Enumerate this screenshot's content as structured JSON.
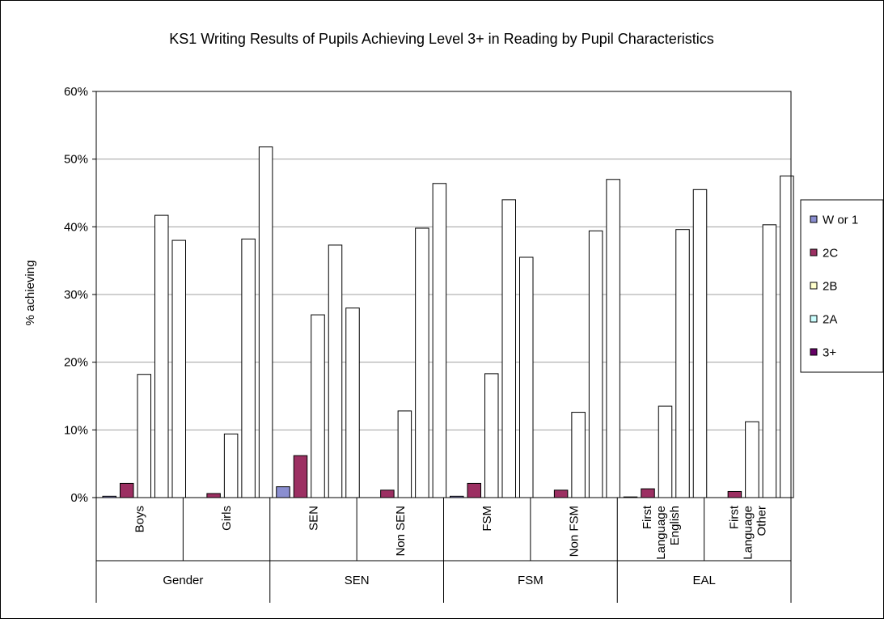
{
  "chart_data": {
    "type": "bar",
    "title": "KS1 Writing Results of Pupils Achieving Level 3+ in Reading by Pupil Characteristics",
    "ylabel": "% achieving",
    "xlabel": "",
    "ylim": [
      0,
      60
    ],
    "yticks": [
      "0%",
      "10%",
      "20%",
      "30%",
      "40%",
      "50%",
      "60%"
    ],
    "grid": true,
    "legend_position": "right",
    "groups": [
      {
        "label": "Gender",
        "categories": [
          "Boys",
          "Girls"
        ]
      },
      {
        "label": "SEN",
        "categories": [
          "SEN",
          "Non SEN"
        ]
      },
      {
        "label": "FSM",
        "categories": [
          "FSM",
          "Non FSM"
        ]
      },
      {
        "label": "EAL",
        "categories": [
          "First Language English",
          "First Language Other"
        ]
      }
    ],
    "category_lines": [
      [
        "Boys"
      ],
      [
        "Girls"
      ],
      [
        "SEN"
      ],
      [
        "Non SEN"
      ],
      [
        "FSM"
      ],
      [
        "Non FSM"
      ],
      [
        "First",
        "Language",
        "English"
      ],
      [
        "First",
        "Language",
        "Other"
      ]
    ],
    "series": [
      {
        "name": "W or 1",
        "color": "#8a8ed0",
        "values": [
          0.2,
          0.0,
          1.6,
          0.0,
          0.2,
          0.0,
          0.1,
          0.0
        ]
      },
      {
        "name": "2C",
        "color": "#9c2f62",
        "values": [
          2.1,
          0.6,
          6.2,
          1.1,
          2.1,
          1.1,
          1.3,
          0.9
        ]
      },
      {
        "name": "2B",
        "color": "#ffffcc",
        "values": [
          18.2,
          9.4,
          27.0,
          12.8,
          18.3,
          12.6,
          13.5,
          11.2
        ]
      },
      {
        "name": "2A",
        "color": "#ccffff",
        "values": [
          41.7,
          38.2,
          37.3,
          39.8,
          44.0,
          39.4,
          39.6,
          40.3
        ]
      },
      {
        "name": "3+",
        "color": "#660066",
        "values": [
          38.0,
          51.8,
          28.0,
          46.4,
          35.5,
          47.0,
          45.5,
          47.5
        ]
      }
    ]
  }
}
